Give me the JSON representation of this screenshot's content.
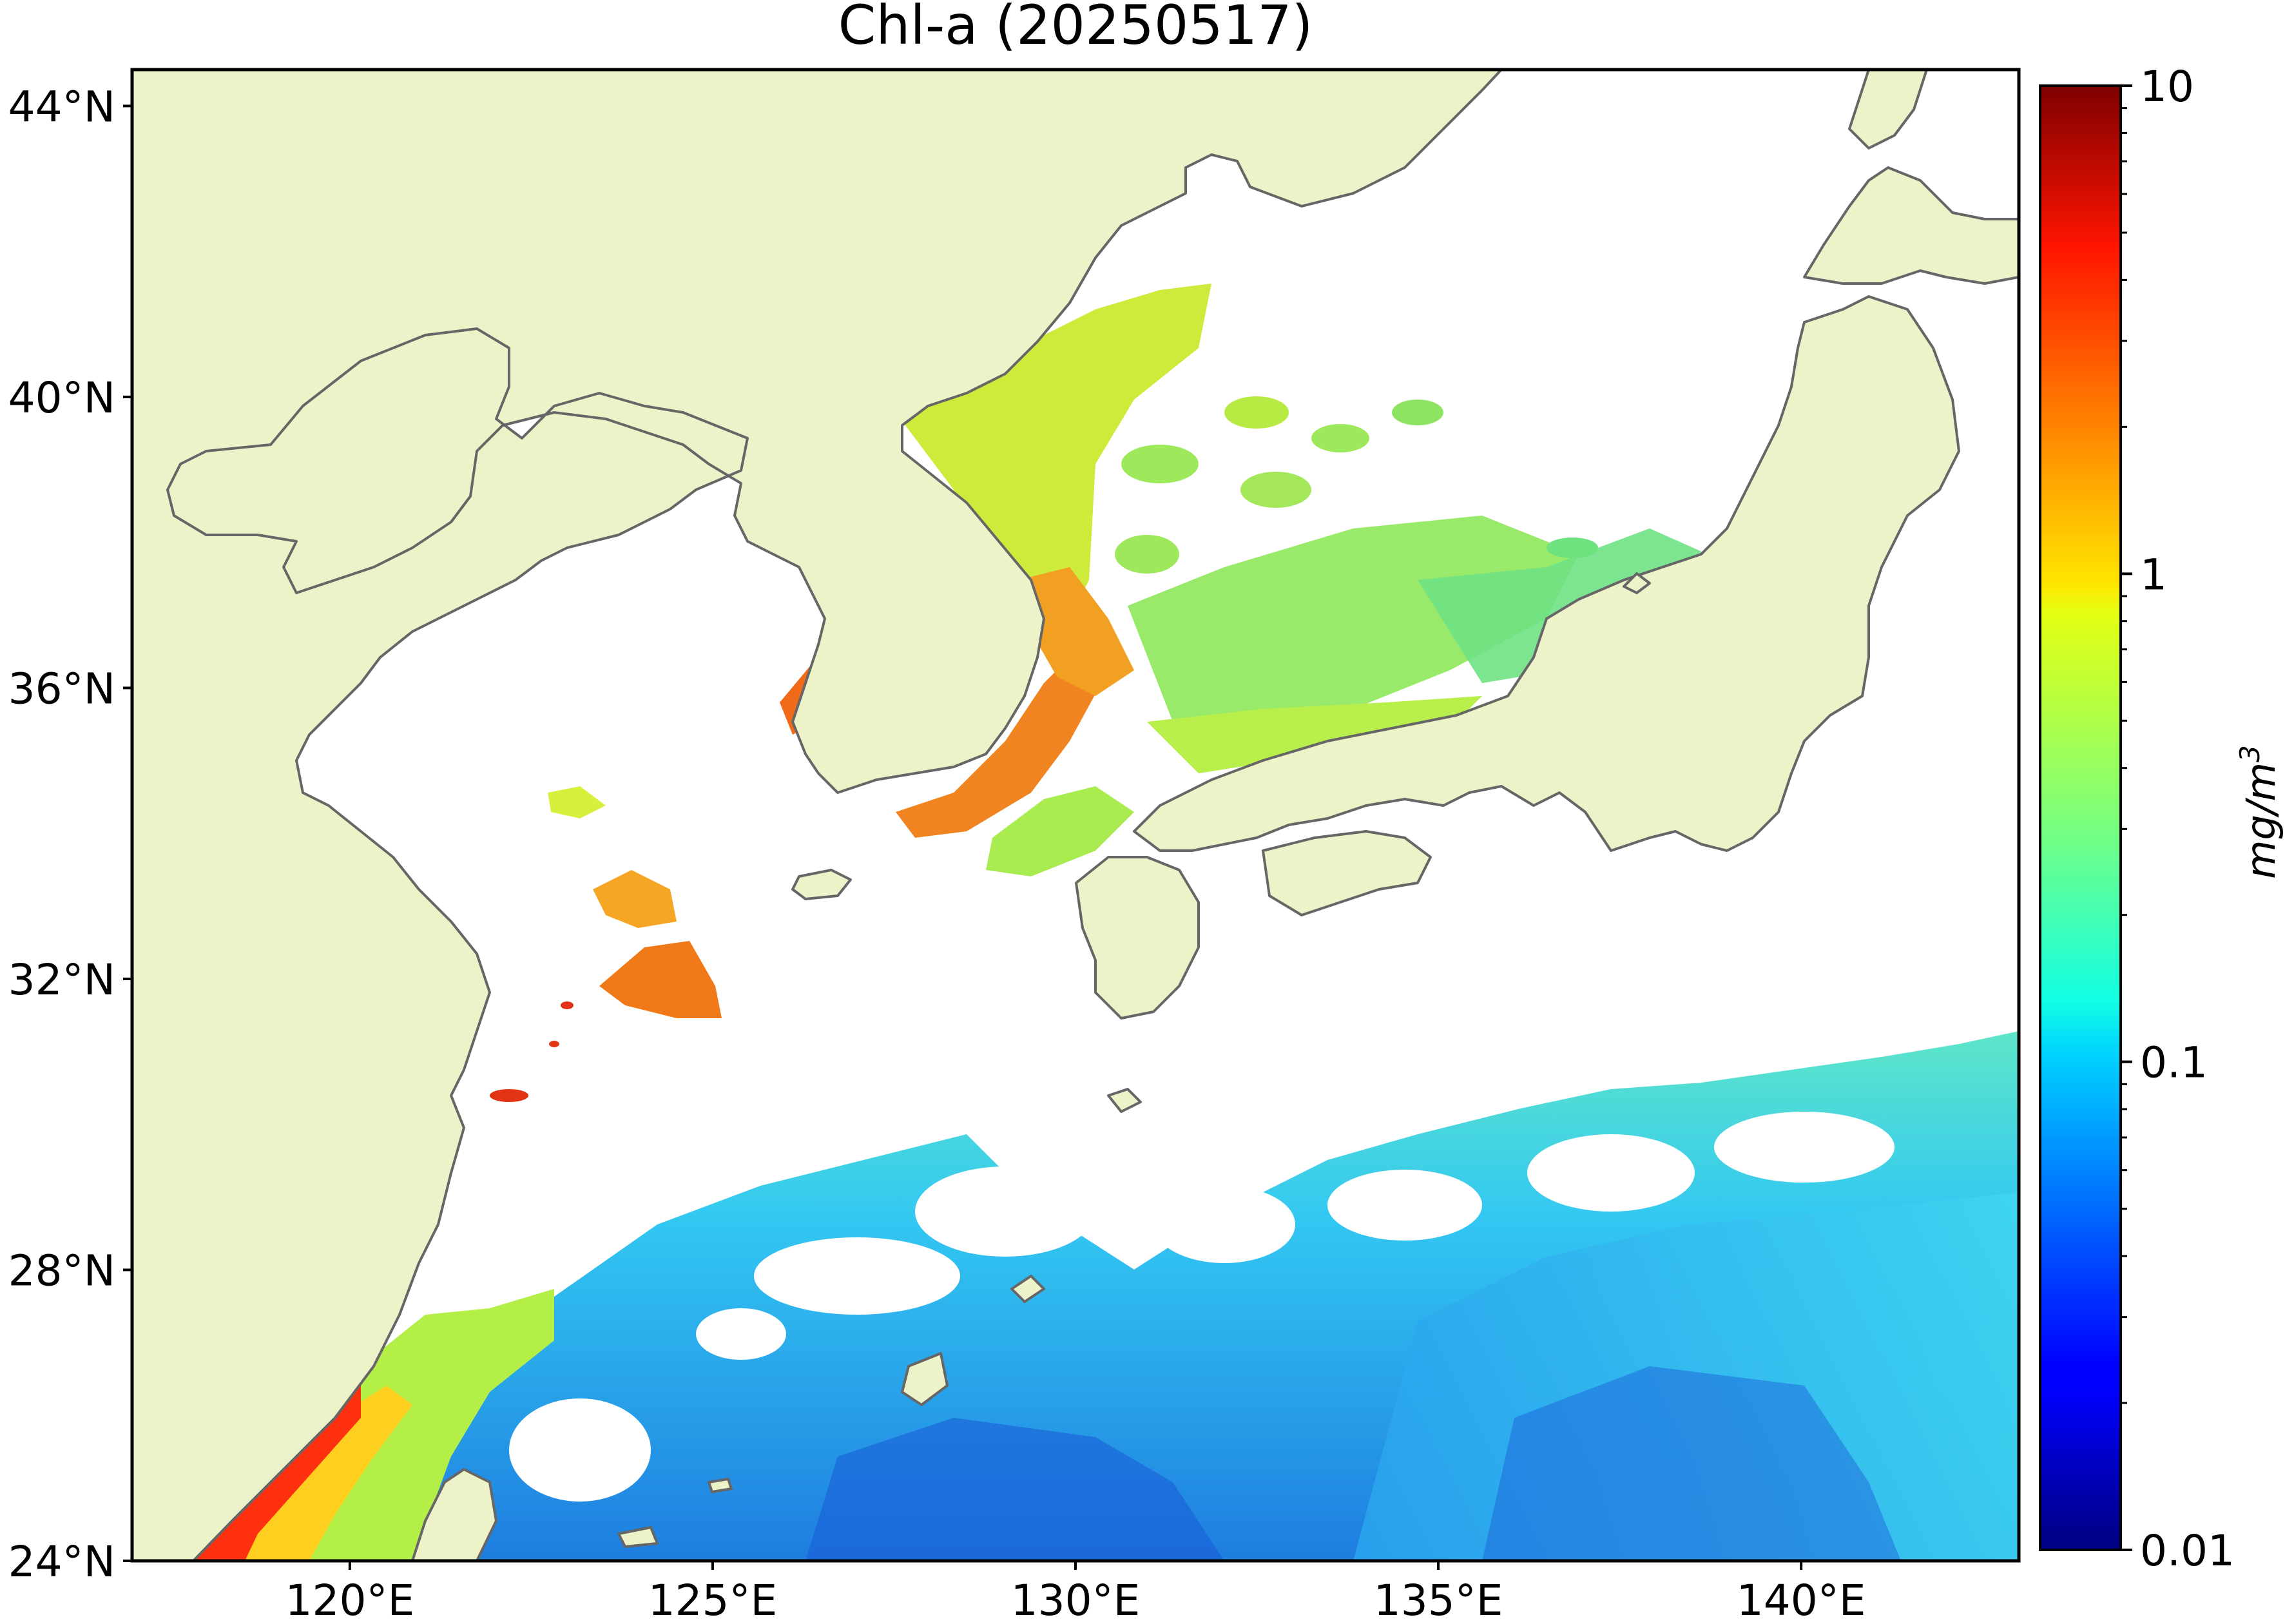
{
  "title": "Chl-a (20250517)",
  "map": {
    "extent": {
      "lon": [
        117,
        143
      ],
      "lat": [
        24,
        44.5
      ]
    },
    "lat_ticks": [
      {
        "value": 44,
        "label": "44°N"
      },
      {
        "value": 40,
        "label": "40°N"
      },
      {
        "value": 36,
        "label": "36°N"
      },
      {
        "value": 32,
        "label": "32°N"
      },
      {
        "value": 28,
        "label": "28°N"
      },
      {
        "value": 24,
        "label": "24°N"
      }
    ],
    "lon_ticks": [
      {
        "value": 120,
        "label": "120°E"
      },
      {
        "value": 125,
        "label": "125°E"
      },
      {
        "value": 130,
        "label": "130°E"
      },
      {
        "value": 135,
        "label": "135°E"
      },
      {
        "value": 140,
        "label": "140°E"
      }
    ],
    "colors": {
      "land": "#eef2c8",
      "coast": "#666666",
      "no_data": "#ffffff",
      "frame": "#000000"
    }
  },
  "colorbar": {
    "unit_label": "mg/m",
    "unit_superscript": "3",
    "scale": "log",
    "range": [
      0.01,
      10
    ],
    "colormap": "jet",
    "ticks": [
      {
        "value": 10,
        "label": "10"
      },
      {
        "value": 1,
        "label": "1"
      },
      {
        "value": 0.1,
        "label": "0.1"
      },
      {
        "value": 0.01,
        "label": "0.01"
      }
    ]
  }
}
